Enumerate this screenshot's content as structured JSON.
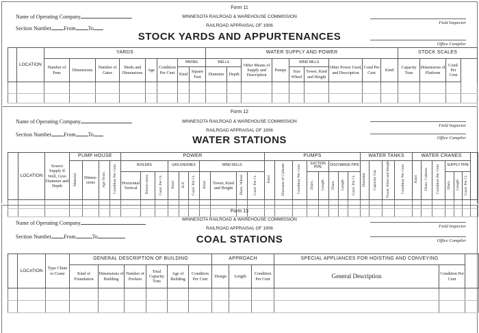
{
  "commission": "MINNESOTA RAILROAD & WAREHOUSE COMMISSION",
  "appraisal": "RAILROAD APPRAISAL OF 1906",
  "fields": {
    "company": "Name of Operating Company",
    "section": "Section Number",
    "from": "From",
    "to": "To",
    "field_inspector": "Field Inspector",
    "office_compiler": "Office Compiler",
    "location": "LOCATION"
  },
  "form11": {
    "form_no": "Form 11",
    "title": "STOCK YARDS AND APPURTENANCES",
    "groups": {
      "yards": "YARDS",
      "water": "WATER SUPPLY AND POWER",
      "scales": "STOCK SCALES",
      "paving": "PAVING",
      "wells": "WELLS",
      "windmills": "WIND MILLS"
    },
    "cols": {
      "pens": "Number of Pens",
      "dims": "Dimensions",
      "gates": "Number of Gates",
      "sheds": "Sheds and Dimensions",
      "age": "Age",
      "cond": "Condition Per Cent",
      "kind": "Kind",
      "sqft": "Square Feet",
      "diam": "Diameter",
      "depth": "Depth",
      "other": "Other Means of Supply and Description",
      "pumps": "Pumps",
      "size": "Size Wheel",
      "tower": "Tower, Kind and Height",
      "otherpower": "Other Power Used, and Description",
      "cond2": "Cond Per Cent",
      "skind": "Kind",
      "cap": "Capacity Tons",
      "plat": "Dimensions of Platform",
      "scond": "Cond. Per Cent"
    }
  },
  "form12": {
    "form_no": "Form 12",
    "title": "WATER STATIONS",
    "groups": {
      "pumphouse": "PUMP HOUSE",
      "power": "POWER",
      "pumps": "PUMPS",
      "tanks": "WATER TANKS",
      "cranes": "WATER CRANES",
      "boilers": "BOILERS",
      "gas": "GAS ENGINES",
      "windmills": "WIND MILLS",
      "suction": "SUCTION PIPE",
      "discharge": "DISCHARGE PIPE",
      "supply": "SUPPLY PIPE"
    },
    "cols": {
      "source": "Source Supply If Well, Give Diameter and Depth",
      "material": "Material",
      "dims": "Dimen-sions",
      "age": "Age Years",
      "cond": "Condition Per Cent",
      "horiz": "Horizontal Vertical",
      "bdims": "Dimen-sions",
      "bcond": "Cond. Per Ct.",
      "gkind": "Kind",
      "hp": "H.P.",
      "gcond": "Cond. Per Ct.",
      "wkind": "Kind",
      "tower": "Tower, Kind and Height",
      "wheel": "Diam. Wheel",
      "wcond": "Cond. Per Ct.",
      "pkind": "Kind",
      "cyl": "Diameter of Cylinder",
      "pcond": "Condition Per Cent",
      "sdiam": "Diam.",
      "slen": "Length",
      "ddiam": "Diam.",
      "dlen": "Length",
      "dcond": "Cond. Per Ct.",
      "tdiam": "Diameter",
      "tcap": "Capacity Gal.",
      "ttower": "Tower, Kind and Height",
      "tcond": "Condition Per Cent",
      "ckind": "Kind",
      "col": "Diam. Column",
      "ccond": "Condition Per Cent",
      "spdiam": "Diam.",
      "splen": "Length",
      "spcond": "Cond. Per Ct."
    }
  },
  "form13": {
    "form_no": "Form 13",
    "title": "COAL STATIONS",
    "groups": {
      "building": "GENERAL DESCRIPTION OF BUILDING",
      "approach": "APPROACH",
      "special": "SPECIAL APPLIANCES FOR HOISTING AND CONVEYING"
    },
    "cols": {
      "type": "Type Chute or Crane",
      "foundation": "Kind of Foundation",
      "dims": "Dimensions of Building",
      "pockets": "Number of Pockets",
      "capacity": "Total Capacity Tons",
      "age": "Age of Building",
      "cond": "Condition Per Cent",
      "design": "Design",
      "length": "Length",
      "acond": "Condition Per Cent",
      "general": "General Description",
      "scond": "Condition Per Cent"
    }
  }
}
